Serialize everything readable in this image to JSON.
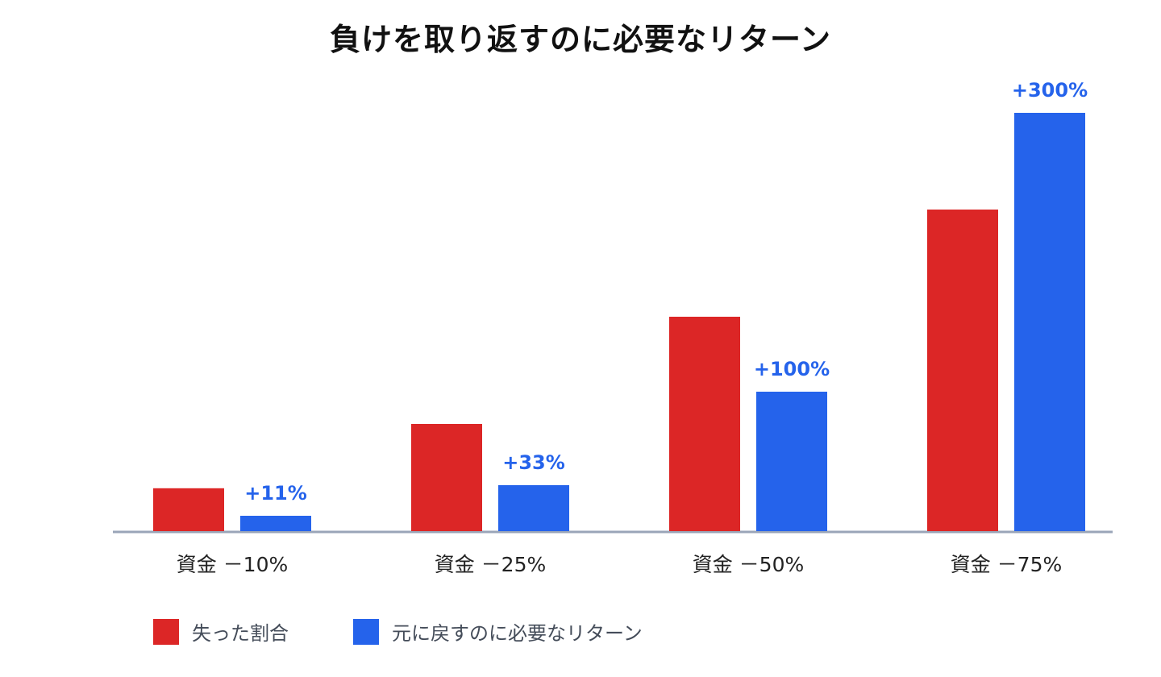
{
  "chart_data": {
    "type": "bar",
    "title": "負けを取り返すのに必要なリターン",
    "categories": [
      "資金 －10%",
      "資金 －25%",
      "資金 －50%",
      "資金 －75%"
    ],
    "series": [
      {
        "name": "失った割合",
        "color": "#dc2626",
        "values": [
          10,
          25,
          50,
          75
        ],
        "data_labels": [
          "",
          "",
          "",
          ""
        ]
      },
      {
        "name": "元に戻すのに必要なリターン",
        "color": "#2563eb",
        "values": [
          11,
          33,
          100,
          300
        ],
        "data_labels": [
          "+11%",
          "+33%",
          "+100%",
          "+300%"
        ]
      }
    ],
    "grid": false,
    "legend_position": "bottom-left",
    "axis_color": "#9aa5b8"
  }
}
